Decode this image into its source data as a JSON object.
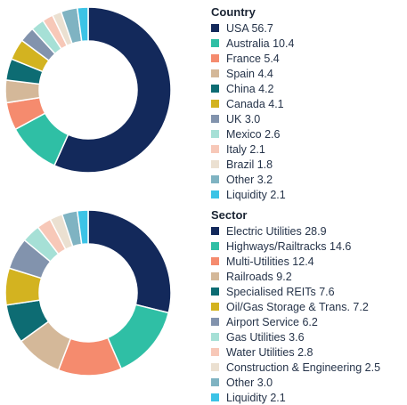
{
  "chart_data": [
    {
      "type": "pie",
      "legend_title": "Country",
      "legend_position": "right",
      "slices": [
        {
          "label": "USA 56.7",
          "name": "USA",
          "value": 56.7,
          "color": "#13295b"
        },
        {
          "label": "Australia 10.4",
          "name": "Australia",
          "value": 10.4,
          "color": "#2fbfa5"
        },
        {
          "label": "France 5.4",
          "name": "France",
          "value": 5.4,
          "color": "#f58b6e"
        },
        {
          "label": "Spain 4.4",
          "name": "Spain",
          "value": 4.4,
          "color": "#d4b899"
        },
        {
          "label": "China 4.2",
          "name": "China",
          "value": 4.2,
          "color": "#0d6c73"
        },
        {
          "label": "Canada 4.1",
          "name": "Canada",
          "value": 4.1,
          "color": "#d3b320"
        },
        {
          "label": "UK 3.0",
          "name": "UK",
          "value": 3.0,
          "color": "#8293ad"
        },
        {
          "label": "Mexico 2.6",
          "name": "Mexico",
          "value": 2.6,
          "color": "#a6e0d6"
        },
        {
          "label": "Italy 2.1",
          "name": "Italy",
          "value": 2.1,
          "color": "#f7c8b8"
        },
        {
          "label": "Brazil 1.8",
          "name": "Brazil",
          "value": 1.8,
          "color": "#ebe0d1"
        },
        {
          "label": "Other 3.2",
          "name": "Other",
          "value": 3.2,
          "color": "#7fb3c2"
        },
        {
          "label": "Liquidity 2.1",
          "name": "Liquidity",
          "value": 2.1,
          "color": "#3cc3e6"
        }
      ]
    },
    {
      "type": "pie",
      "legend_title": "Sector",
      "legend_position": "right",
      "slices": [
        {
          "label": "Electric Utilities 28.9",
          "name": "Electric Utilities",
          "value": 28.9,
          "color": "#13295b"
        },
        {
          "label": "Highways/Railtracks 14.6",
          "name": "Highways/Railtracks",
          "value": 14.6,
          "color": "#2fbfa5"
        },
        {
          "label": "Multi-Utilities 12.4",
          "name": "Multi-Utilities",
          "value": 12.4,
          "color": "#f58b6e"
        },
        {
          "label": "Railroads 9.2",
          "name": "Railroads",
          "value": 9.2,
          "color": "#d4b899"
        },
        {
          "label": "Specialised REITs 7.6",
          "name": "Specialised REITs",
          "value": 7.6,
          "color": "#0d6c73"
        },
        {
          "label": "Oil/Gas Storage & Trans. 7.2",
          "name": "Oil/Gas Storage & Trans.",
          "value": 7.2,
          "color": "#d3b320"
        },
        {
          "label": "Airport Service 6.2",
          "name": "Airport Service",
          "value": 6.2,
          "color": "#8293ad"
        },
        {
          "label": "Gas Utilities 3.6",
          "name": "Gas Utilities",
          "value": 3.6,
          "color": "#a6e0d6"
        },
        {
          "label": "Water Utilities 2.8",
          "name": "Water Utilities",
          "value": 2.8,
          "color": "#f7c8b8"
        },
        {
          "label": "Construction & Engineering 2.5",
          "name": "Construction & Engineering",
          "value": 2.5,
          "color": "#ebe0d1"
        },
        {
          "label": "Other 3.0",
          "name": "Other",
          "value": 3.0,
          "color": "#7fb3c2"
        },
        {
          "label": "Liquidity 2.1",
          "name": "Liquidity",
          "value": 2.1,
          "color": "#3cc3e6"
        }
      ]
    }
  ]
}
